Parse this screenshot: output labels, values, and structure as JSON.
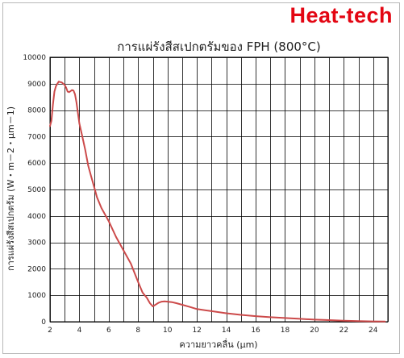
{
  "brand": "Heat-tech",
  "colors": {
    "line": "#cc4a4a",
    "brand": "#e30613",
    "grid": "#000000"
  },
  "chart_data": {
    "type": "line",
    "title": "การแผ่รังสีสเปกตรัมของ FPH (800°C)",
    "xlabel": "ความยาวคลื่น (μm)",
    "ylabel": "การแผ่รังสีสเปกตรัม (W・m－2・μm－1)",
    "xlim": [
      2,
      25
    ],
    "ylim": [
      0,
      10000
    ],
    "xticks": [
      2,
      4,
      6,
      8,
      10,
      12,
      14,
      16,
      18,
      20,
      22,
      24
    ],
    "yticks": [
      0,
      1000,
      2000,
      3000,
      4000,
      5000,
      6000,
      7000,
      8000,
      9000,
      10000
    ],
    "grid": true,
    "series": [
      {
        "x": [
          2.0,
          2.1,
          2.2,
          2.3,
          2.4,
          2.5,
          2.6,
          2.7,
          2.8,
          2.9,
          3.0,
          3.1,
          3.2,
          3.3,
          3.4,
          3.5,
          3.6,
          3.7,
          3.8,
          3.9,
          4.0,
          4.2,
          4.4,
          4.6,
          4.8,
          5.0,
          5.2,
          5.5,
          6.0,
          6.5,
          7.0,
          7.5,
          8.0,
          8.3,
          8.6,
          8.8,
          9.0,
          9.2,
          9.4,
          9.6,
          9.8,
          10.0,
          10.3,
          10.6,
          11.0,
          11.5,
          12.0,
          13.0,
          14.0,
          15.0,
          16.0,
          17.0,
          18.0,
          19.0,
          20.0,
          21.0,
          22.0,
          23.0,
          24.0,
          24.8
        ],
        "y": [
          7400,
          7600,
          8200,
          8700,
          8900,
          9000,
          9080,
          9060,
          9050,
          9000,
          8950,
          8850,
          8700,
          8680,
          8720,
          8760,
          8740,
          8600,
          8300,
          7900,
          7500,
          7000,
          6500,
          5900,
          5500,
          5100,
          4700,
          4300,
          3800,
          3200,
          2700,
          2200,
          1500,
          1100,
          900,
          700,
          580,
          650,
          720,
          760,
          770,
          760,
          740,
          700,
          640,
          560,
          480,
          400,
          320,
          260,
          210,
          170,
          140,
          110,
          80,
          60,
          40,
          25,
          12,
          5
        ]
      }
    ]
  }
}
